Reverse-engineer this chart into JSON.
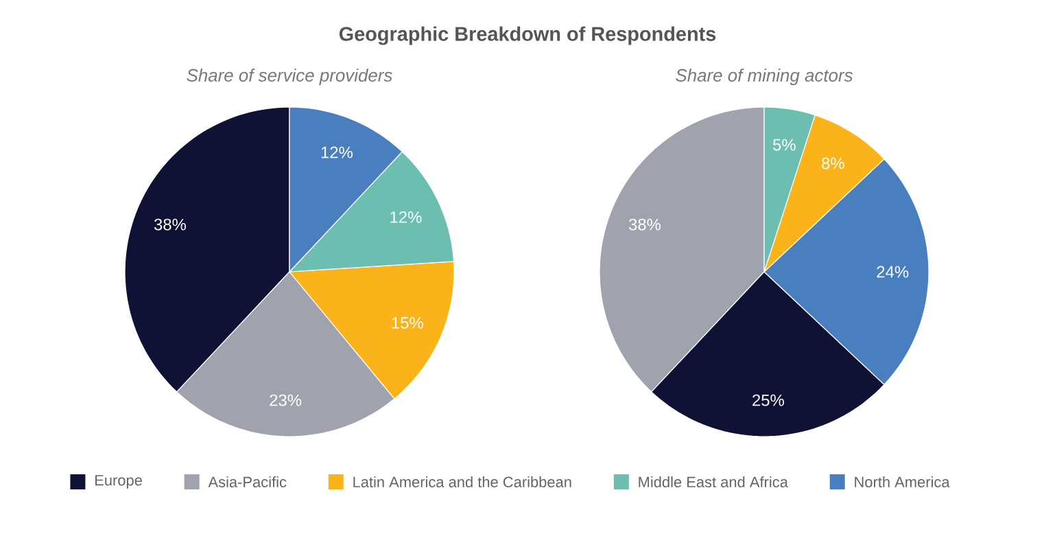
{
  "chart_data": [
    {
      "type": "pie",
      "title": "Geographic Breakdown of Respondents",
      "subtitle": "Share of service providers",
      "categories": [
        "Europe",
        "Asia-Pacific",
        "Latin America and the Caribbean",
        "Middle East and Africa",
        "North America"
      ],
      "values": [
        38,
        23,
        15,
        12,
        12
      ],
      "colors": [
        "#0f1235",
        "#a0a3ae",
        "#fbb31a",
        "#6cbfb0",
        "#4a7fbf"
      ],
      "value_labels": [
        "38%",
        "23%",
        "15%",
        "12%",
        "12%"
      ],
      "legend": "bottom"
    },
    {
      "type": "pie",
      "subtitle": "Share of mining actors",
      "categories": [
        null,
        null,
        null,
        null,
        null
      ],
      "values": [
        38,
        25,
        24,
        8,
        5
      ],
      "colors": [
        "#a0a3ae",
        "#0f1235",
        "#4a7fbf",
        "#fbb31a",
        "#6cbfb0"
      ],
      "value_labels": [
        "38%",
        "25%",
        "24%",
        "8%",
        "5%"
      ]
    }
  ]
}
